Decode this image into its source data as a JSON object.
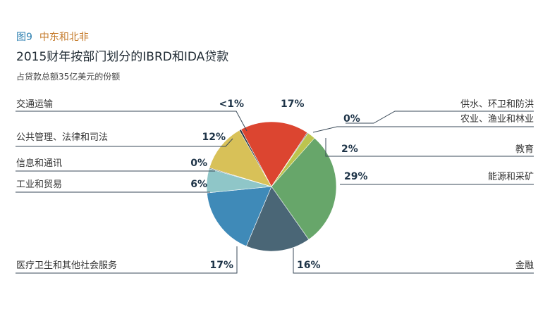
{
  "figure": {
    "label": "图9",
    "region": "中东和北非"
  },
  "title": "2015财年按部门划分的IBRD和IDA贷款",
  "subtitle": "占贷款总额35亿美元的份额",
  "chart_data": {
    "type": "pie",
    "unit": "%",
    "slices": [
      {
        "label": "能源和采矿",
        "value_label": "29%",
        "value": 29,
        "color": "#67a66a"
      },
      {
        "label": "金融",
        "value_label": "16%",
        "value": 16,
        "color": "#4a6676"
      },
      {
        "label": "医疗卫生和其他社会服务",
        "value_label": "17%",
        "value": 17,
        "color": "#3f8ab8"
      },
      {
        "label": "工业和贸易",
        "value_label": "6%",
        "value": 6,
        "color": "#8fc6c8"
      },
      {
        "label": "信息和通讯",
        "value_label": "0%",
        "value": 0,
        "color": "#2a3a44"
      },
      {
        "label": "公共管理、法律和司法",
        "value_label": "12%",
        "value": 12,
        "color": "#d8c158"
      },
      {
        "label": "交通运输",
        "value_label": "<1%",
        "value": 0.5,
        "color": "#2a3a44"
      },
      {
        "label": "供水、环卫和防洪",
        "value_label": "17%",
        "value": 17,
        "color": "#dc4530"
      },
      {
        "label": "农业、渔业和林业",
        "value_label": "0%",
        "value": 0,
        "color": "#2a3a44"
      },
      {
        "label": "教育",
        "value_label": "2%",
        "value": 2,
        "color": "#bcc44e"
      }
    ]
  }
}
